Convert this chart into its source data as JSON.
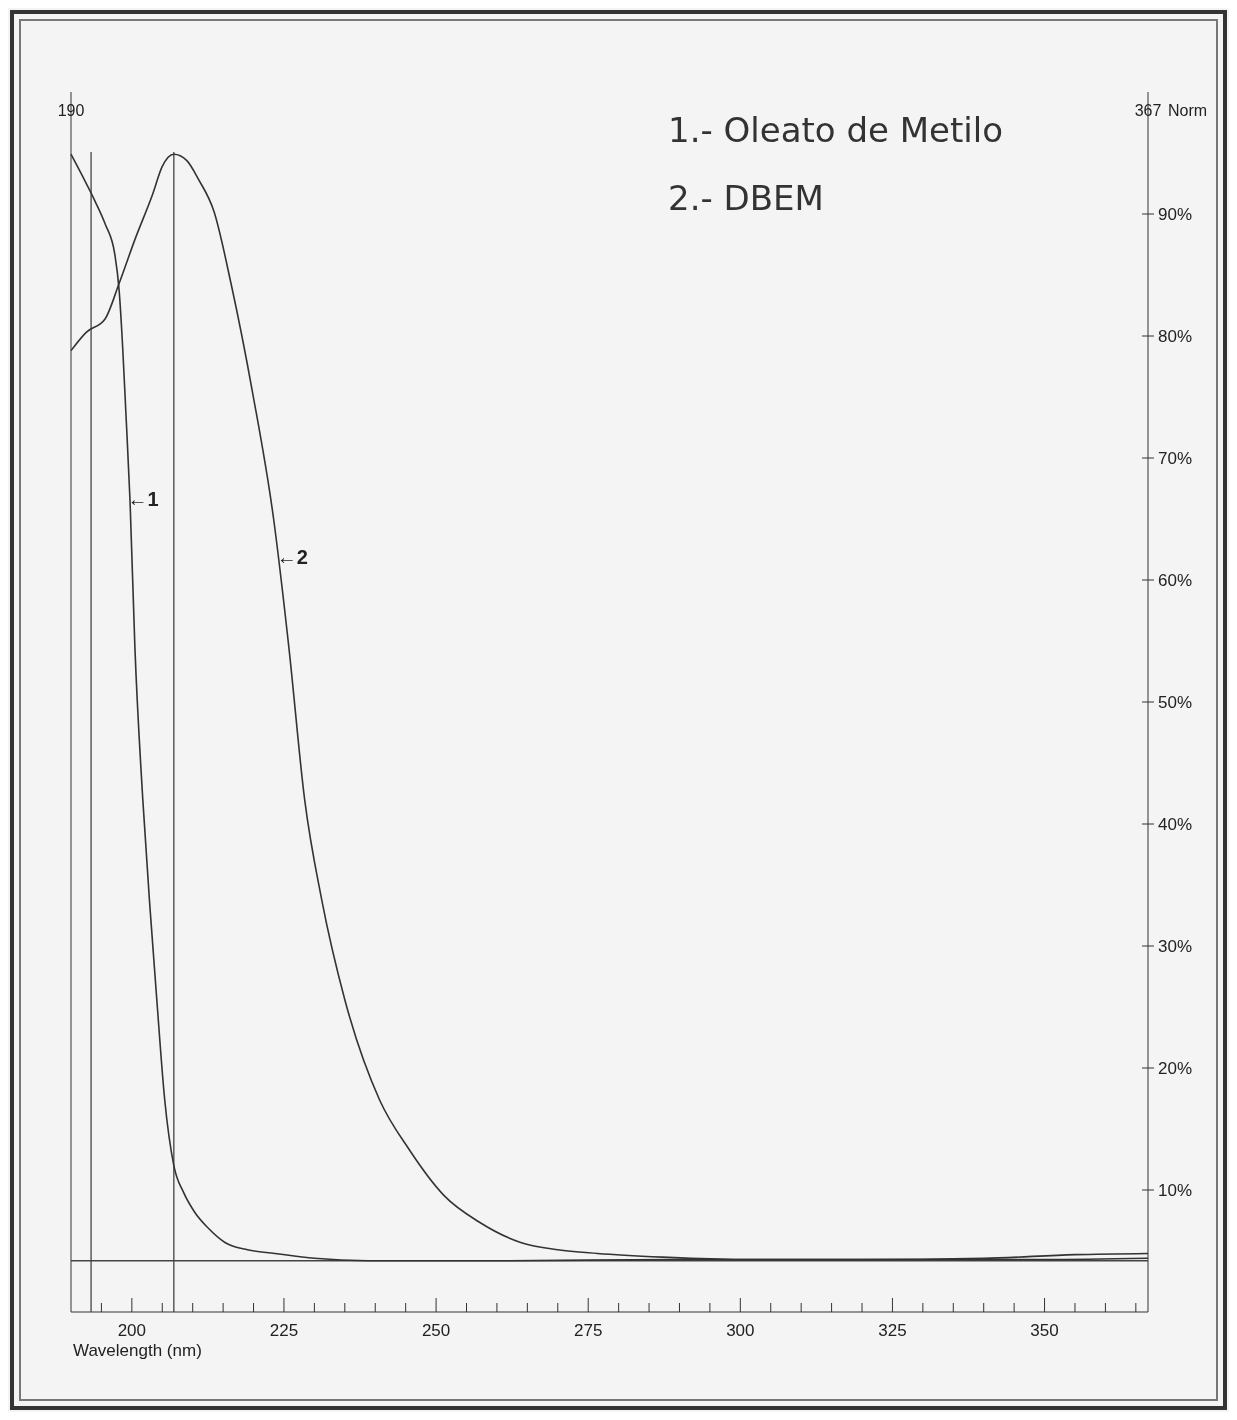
{
  "chart_data": {
    "type": "line",
    "xlabel": "Wavelength (nm)",
    "ylabel": "Norm",
    "xlim": [
      190,
      367
    ],
    "ylim": [
      0,
      100
    ],
    "xticks": [
      {
        "value": 195,
        "label": null
      },
      {
        "value": 200,
        "label": "200"
      },
      {
        "value": 205,
        "label": null
      },
      {
        "value": 210,
        "label": null
      },
      {
        "value": 215,
        "label": null
      },
      {
        "value": 220,
        "label": null
      },
      {
        "value": 225,
        "label": "225"
      },
      {
        "value": 230,
        "label": null
      },
      {
        "value": 235,
        "label": null
      },
      {
        "value": 240,
        "label": null
      },
      {
        "value": 245,
        "label": null
      },
      {
        "value": 250,
        "label": "250"
      },
      {
        "value": 255,
        "label": null
      },
      {
        "value": 260,
        "label": null
      },
      {
        "value": 265,
        "label": null
      },
      {
        "value": 270,
        "label": null
      },
      {
        "value": 275,
        "label": "275"
      },
      {
        "value": 280,
        "label": null
      },
      {
        "value": 285,
        "label": null
      },
      {
        "value": 290,
        "label": null
      },
      {
        "value": 295,
        "label": null
      },
      {
        "value": 300,
        "label": "300"
      },
      {
        "value": 305,
        "label": null
      },
      {
        "value": 310,
        "label": null
      },
      {
        "value": 315,
        "label": null
      },
      {
        "value": 320,
        "label": null
      },
      {
        "value": 325,
        "label": "325"
      },
      {
        "value": 330,
        "label": null
      },
      {
        "value": 335,
        "label": null
      },
      {
        "value": 340,
        "label": null
      },
      {
        "value": 345,
        "label": null
      },
      {
        "value": 350,
        "label": "350"
      },
      {
        "value": 355,
        "label": null
      },
      {
        "value": 360,
        "label": null
      },
      {
        "value": 365,
        "label": null
      }
    ],
    "x2lim": [
      190,
      367
    ],
    "x2ticks": [
      190,
      367
    ],
    "yticks": [
      {
        "value": 10,
        "label": "10%"
      },
      {
        "value": 20,
        "label": "20%"
      },
      {
        "value": 30,
        "label": "30%"
      },
      {
        "value": 40,
        "label": "40%"
      },
      {
        "value": 50,
        "label": "50%"
      },
      {
        "value": 60,
        "label": "60%"
      },
      {
        "value": 70,
        "label": "70%"
      },
      {
        "value": 80,
        "label": "80%"
      },
      {
        "value": 90,
        "label": "90%"
      }
    ],
    "series": [
      {
        "color": "#333333",
        "x": [
          190,
          192,
          194,
          195.6,
          197.2,
          197.9,
          198.5,
          199,
          199.7,
          200.5,
          201.8,
          203,
          204.1,
          205.4,
          206.9,
          208.5,
          210.3,
          212.5,
          215.3,
          219,
          223.5,
          230,
          238.8,
          260,
          290,
          320,
          350,
          367
        ],
        "values": [
          94.9,
          93,
          91,
          89.2,
          86.7,
          83.8,
          79,
          73.9,
          66.5,
          54.5,
          42,
          33,
          25.6,
          17.4,
          12,
          9.8,
          8.2,
          6.9,
          5.7,
          5.1,
          4.8,
          4.4,
          4.2,
          4.2,
          4.3,
          4.3,
          4.3,
          4.4
        ]
      },
      {
        "color": "#333333",
        "x": [
          190,
          192.5,
          195.6,
          197.9,
          200.5,
          203.4,
          205,
          206.9,
          209,
          211,
          213.5,
          216.3,
          219.9,
          223.3,
          225.8,
          228.4,
          231.2,
          235,
          240.7,
          245.6,
          251.4,
          257,
          263.9,
          270,
          276.5,
          287.2,
          300,
          320,
          340,
          355,
          367
        ],
        "values": [
          78.8,
          80.3,
          81.4,
          84.3,
          87.9,
          91.6,
          93.9,
          94.9,
          94.4,
          92.8,
          90.2,
          84.3,
          75.2,
          65,
          54.5,
          42,
          33.8,
          25.6,
          17.4,
          13.3,
          9.5,
          7.4,
          5.7,
          5.1,
          4.8,
          4.5,
          4.3,
          4.3,
          4.4,
          4.7,
          4.8
        ]
      }
    ],
    "ref_lines": [
      {
        "axis": "y",
        "value": 4.2
      },
      {
        "axis": "x",
        "value": 193.3
      },
      {
        "axis": "x",
        "value": 206.9
      }
    ],
    "annotations": [
      "1.- Oleato de Metilo",
      "2.- DBEM",
      {
        "text": "←1",
        "x": 199.3,
        "y": 66.6
      },
      {
        "text": "←2",
        "x": 223.8,
        "y": 61.9
      }
    ]
  }
}
